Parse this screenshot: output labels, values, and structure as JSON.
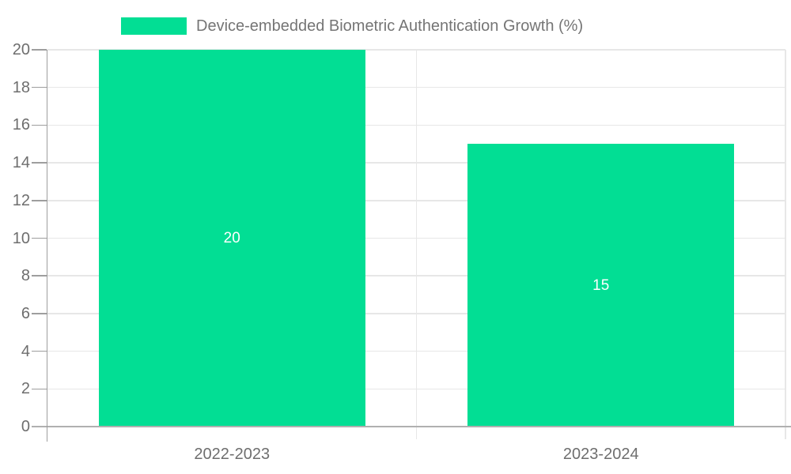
{
  "chart_data": {
    "type": "bar",
    "legend_label": "Device-embedded Biometric Authentication Growth (%)",
    "categories": [
      "2022-2023",
      "2023-2024"
    ],
    "series": [
      {
        "name": "Device-embedded Biometric Authentication Growth (%)",
        "values": [
          20,
          15
        ]
      }
    ],
    "bar_value_labels": [
      "20",
      "15"
    ],
    "xlabel": "",
    "ylabel": "",
    "ylim": [
      0,
      20
    ],
    "ytick_step": 2,
    "ytick_labels": [
      "0",
      "2",
      "4",
      "6",
      "8",
      "10",
      "12",
      "14",
      "16",
      "18",
      "20"
    ],
    "grid": true,
    "legend_position": "top-center",
    "colors": {
      "bar": "#02DE94",
      "bar_label": "#FFFFFF",
      "grid_line": "#E7E7E7",
      "axis_line": "#B0B0B0",
      "y_axis_line": "#9E9E9E",
      "tick_mark": "#9E9E9E",
      "tick_label": "#6E6E6E",
      "legend_text": "#757575",
      "background": "#FFFFFF"
    }
  }
}
